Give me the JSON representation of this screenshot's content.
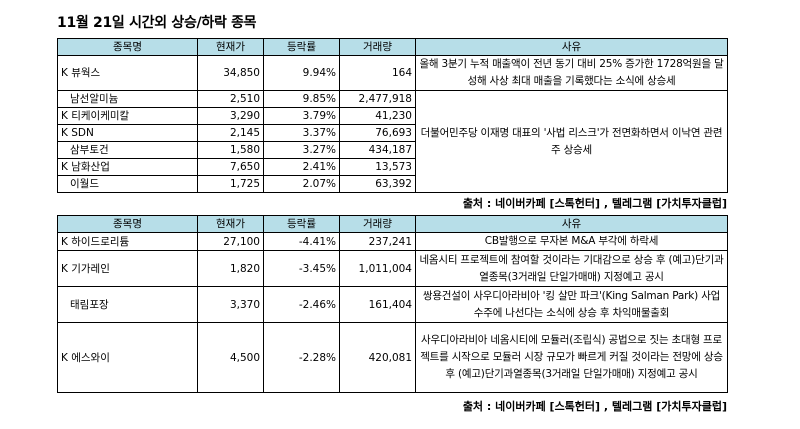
{
  "title": "11월 21일  시간외 상승/하락 종목",
  "headers": {
    "name": "종목명",
    "price": "현재가",
    "change": "등락률",
    "volume": "거래량",
    "reason": "사유"
  },
  "up": {
    "rows": [
      {
        "name": "K 뷰웍스",
        "price": "34,850",
        "change": "9.94%",
        "volume": "164"
      },
      {
        "name": "남선알미늄",
        "price": "2,510",
        "change": "9.85%",
        "volume": "2,477,918"
      },
      {
        "name": "K 티케이케미칼",
        "price": "3,290",
        "change": "3.79%",
        "volume": "41,230"
      },
      {
        "name": "K SDN",
        "price": "2,145",
        "change": "3.37%",
        "volume": "76,693"
      },
      {
        "name": "삼부토건",
        "price": "1,580",
        "change": "3.27%",
        "volume": "434,187"
      },
      {
        "name": "K 남화산업",
        "price": "7,650",
        "change": "2.41%",
        "volume": "13,573"
      },
      {
        "name": "이월드",
        "price": "1,725",
        "change": "2.07%",
        "volume": "63,392"
      }
    ],
    "reason1": "올해 3분기 누적 매출액이 전년 동기 대비 25% 증가한 1728억원을 달성해 사상 최대 매출을 기록했다는 소식에 상승세",
    "reason2": "더불어민주당 이재명 대표의 '사법 리스크'가 전면화하면서 이낙연 관련주 상승세"
  },
  "down": {
    "rows": [
      {
        "name": "K 하이드로리튬",
        "price": "27,100",
        "change": "-4.41%",
        "volume": "237,241",
        "reason": "CB발행으로 무자본 M&A 부각에 하락세"
      },
      {
        "name": "K 기가레인",
        "price": "1,820",
        "change": "-3.45%",
        "volume": "1,011,004",
        "reason": "네옴시티 프로젝트에 참여할 것이라는 기대감으로 상승 후 (예고)단기과열종목(3거래일 단일가매매) 지정예고 공시"
      },
      {
        "name": "태림포장",
        "price": "3,370",
        "change": "-2.46%",
        "volume": "161,404",
        "reason": "쌍용건설이 사우디아라비아 '킹 살만 파크'(King Salman Park) 사업 수주에 나선다는 소식에 상승 후 차익매물출회"
      },
      {
        "name": "K 에스와이",
        "price": "4,500",
        "change": "-2.28%",
        "volume": "420,081",
        "reason": "사우디아라비아 네옴시티에 모듈러(조립식) 공법으로 짓는 초대형 프로젝트를 시작으로 모듈러 시장 규모가 빠르게 커질 것이라는 전망에 상승 후 (예고)단기과열종목(3거래일 단일가매매) 지정예고 공시"
      }
    ]
  },
  "source": "출처 : 네이버카페 [스톡헌터] , 텔레그램 [가치투자클럽]"
}
